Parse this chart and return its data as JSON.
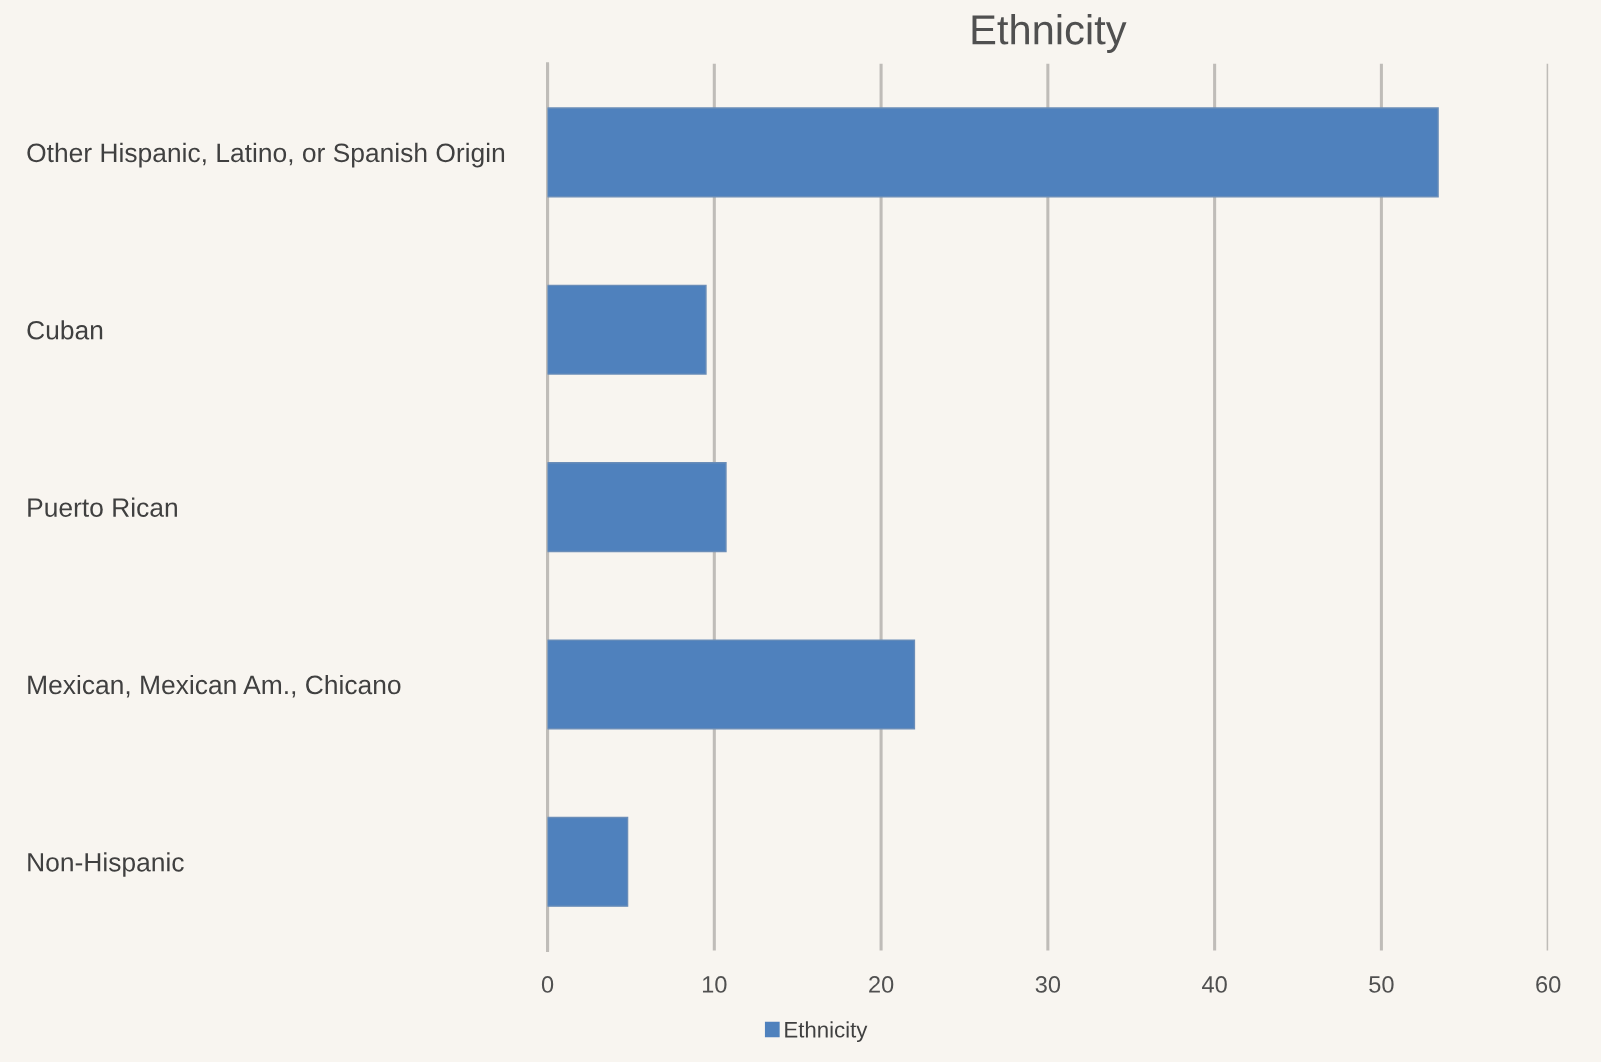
{
  "chart_data": {
    "type": "bar",
    "title": "Ethnicity",
    "orientation": "horizontal",
    "categories": [
      "Other Hispanic, Latino, or Spanish Origin",
      "Cuban",
      "Puerto Rican",
      "Mexican, Mexican Am., Chicano",
      "Non-Hispanic"
    ],
    "series": [
      {
        "name": "Ethnicity",
        "color": "#4f81bd",
        "values": [
          53.4,
          9.5,
          10.7,
          22,
          4.8
        ]
      }
    ],
    "xlim": [
      0,
      60
    ],
    "xticks": [
      0,
      10,
      20,
      30,
      40,
      50,
      60
    ],
    "grid": "x",
    "legend": "bottom"
  }
}
